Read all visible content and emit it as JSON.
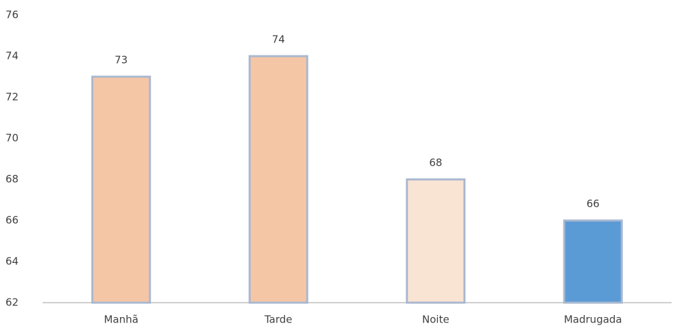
{
  "chart_data": {
    "type": "bar",
    "categories": [
      "Manhã",
      "Tarde",
      "Noite",
      "Madrugada"
    ],
    "values": [
      73,
      74,
      68,
      66
    ],
    "colors": [
      "#f5c6a5",
      "#f5c6a5",
      "#f9e3d3",
      "#5b9bd5"
    ],
    "ylim": [
      62,
      76
    ],
    "yticks": [
      62,
      64,
      66,
      68,
      70,
      72,
      74,
      76
    ],
    "grid": false
  }
}
